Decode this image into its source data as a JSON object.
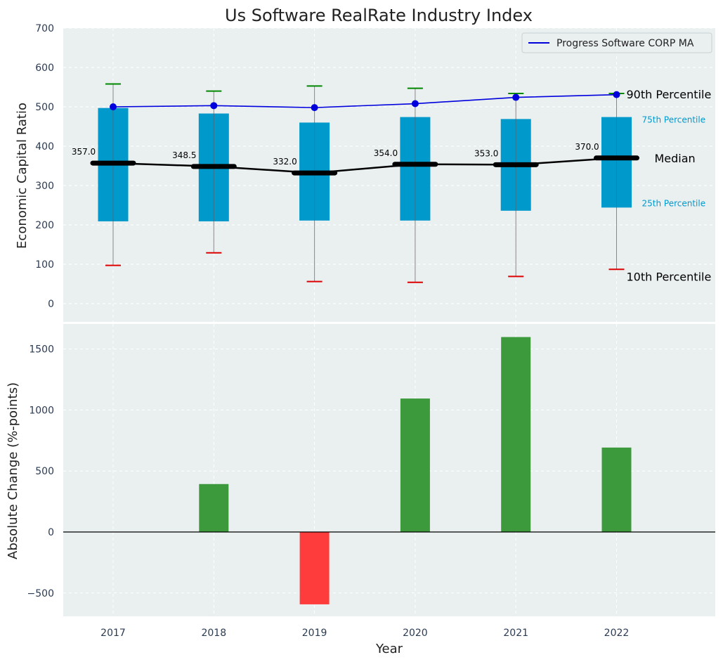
{
  "chart_data": [
    {
      "type": "box",
      "title": "Us Software RealRate Industry Index",
      "ylabel": "Economic Capital Ratio",
      "xlabel": "",
      "ylim": [
        -50,
        700
      ],
      "yticks": [
        0,
        100,
        200,
        300,
        400,
        500,
        600,
        700
      ],
      "categories": [
        "2017",
        "2018",
        "2019",
        "2020",
        "2021",
        "2022"
      ],
      "p10": [
        97,
        129,
        56,
        54,
        69,
        87
      ],
      "p25": [
        209,
        209,
        211,
        211,
        236,
        244
      ],
      "median": [
        357.0,
        348.5,
        332.0,
        354.0,
        353.0,
        370.0
      ],
      "median_labels": [
        "357.0",
        "348.5",
        "332.0",
        "354.0",
        "353.0",
        "370.0"
      ],
      "p75": [
        497,
        483,
        460,
        474,
        469,
        474
      ],
      "p90": [
        558,
        540,
        553,
        547,
        534,
        534
      ],
      "series": [
        {
          "name": "Progress Software CORP MA",
          "values": [
            500,
            503,
            498,
            508,
            524,
            531
          ]
        }
      ],
      "annotations": {
        "p90": "90th Percentile",
        "p75": "75th Percentile",
        "median": "Median",
        "p25": "25th Percentile",
        "p10": "10th Percentile"
      },
      "legend_position": "top-right",
      "grid": true
    },
    {
      "type": "bar",
      "ylabel": "Absolute Change (%-points)",
      "xlabel": "Year",
      "ylim": [
        -700,
        1700
      ],
      "yticks": [
        -500,
        0,
        500,
        1000,
        1500
      ],
      "ytick_labels": [
        "−500",
        "0",
        "500",
        "1000",
        "1500"
      ],
      "categories": [
        "2017",
        "2018",
        "2019",
        "2020",
        "2021",
        "2022"
      ],
      "values": [
        0,
        393,
        -593,
        1094,
        1598,
        692
      ],
      "grid": true
    }
  ],
  "colors": {
    "panel_bg": "#eaeff0",
    "box": "#0099cc",
    "line_blue": "#0000dd",
    "median": "#000000",
    "whisker_low": "#dd0000",
    "whisker_high": "#008800",
    "bar_pos": "#3c9a3c",
    "bar_neg": "#ff3c3c"
  }
}
